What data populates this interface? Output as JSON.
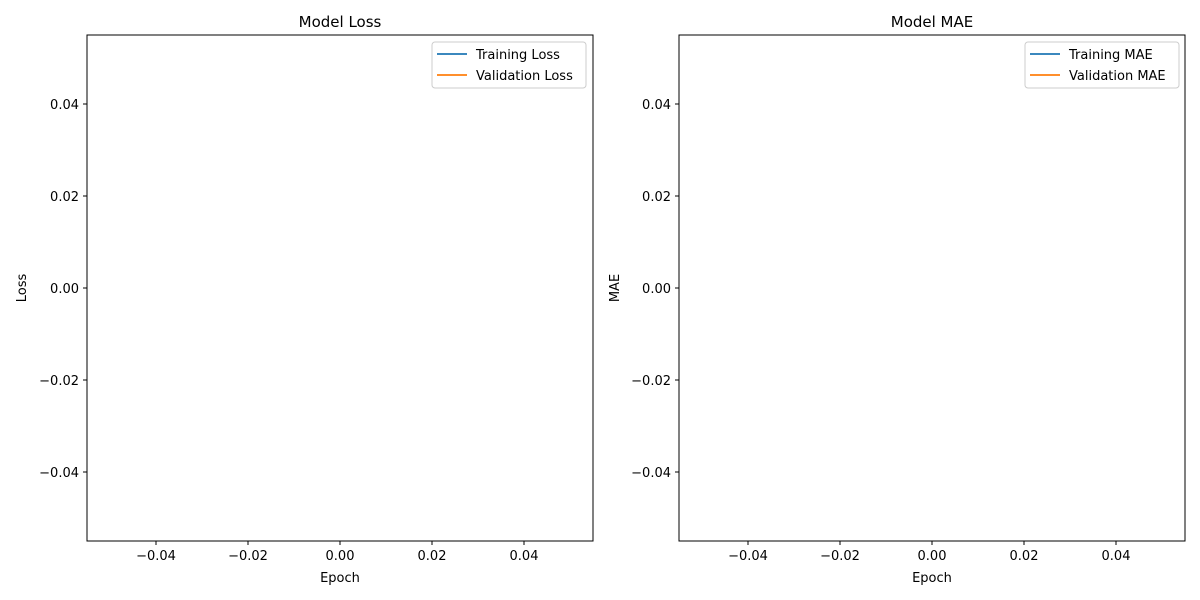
{
  "chart_data": [
    {
      "type": "line",
      "title": "Model Loss",
      "xlabel": "Epoch",
      "ylabel": "Loss",
      "xlim": [
        -0.055,
        0.055
      ],
      "ylim": [
        -0.055,
        0.055
      ],
      "xticks": [
        -0.04,
        -0.02,
        0.0,
        0.02,
        0.04
      ],
      "yticks": [
        -0.04,
        -0.02,
        0.0,
        0.02,
        0.04
      ],
      "xtick_labels": [
        "−0.04",
        "−0.02",
        "0.00",
        "0.02",
        "0.04"
      ],
      "ytick_labels": [
        "−0.04",
        "−0.02",
        "0.00",
        "0.02",
        "0.04"
      ],
      "grid": false,
      "legend_position": "top-right",
      "series": [
        {
          "name": "Training Loss",
          "color": "#1f77b4",
          "x": [],
          "y": []
        },
        {
          "name": "Validation Loss",
          "color": "#ff7f0e",
          "x": [],
          "y": []
        }
      ]
    },
    {
      "type": "line",
      "title": "Model MAE",
      "xlabel": "Epoch",
      "ylabel": "MAE",
      "xlim": [
        -0.055,
        0.055
      ],
      "ylim": [
        -0.055,
        0.055
      ],
      "xticks": [
        -0.04,
        -0.02,
        0.0,
        0.02,
        0.04
      ],
      "yticks": [
        -0.04,
        -0.02,
        0.0,
        0.02,
        0.04
      ],
      "xtick_labels": [
        "−0.04",
        "−0.02",
        "0.00",
        "0.02",
        "0.04"
      ],
      "ytick_labels": [
        "−0.04",
        "−0.02",
        "0.00",
        "0.02",
        "0.04"
      ],
      "grid": false,
      "legend_position": "top-right",
      "series": [
        {
          "name": "Training MAE",
          "color": "#1f77b4",
          "x": [],
          "y": []
        },
        {
          "name": "Validation MAE",
          "color": "#ff7f0e",
          "x": [],
          "y": []
        }
      ]
    }
  ]
}
